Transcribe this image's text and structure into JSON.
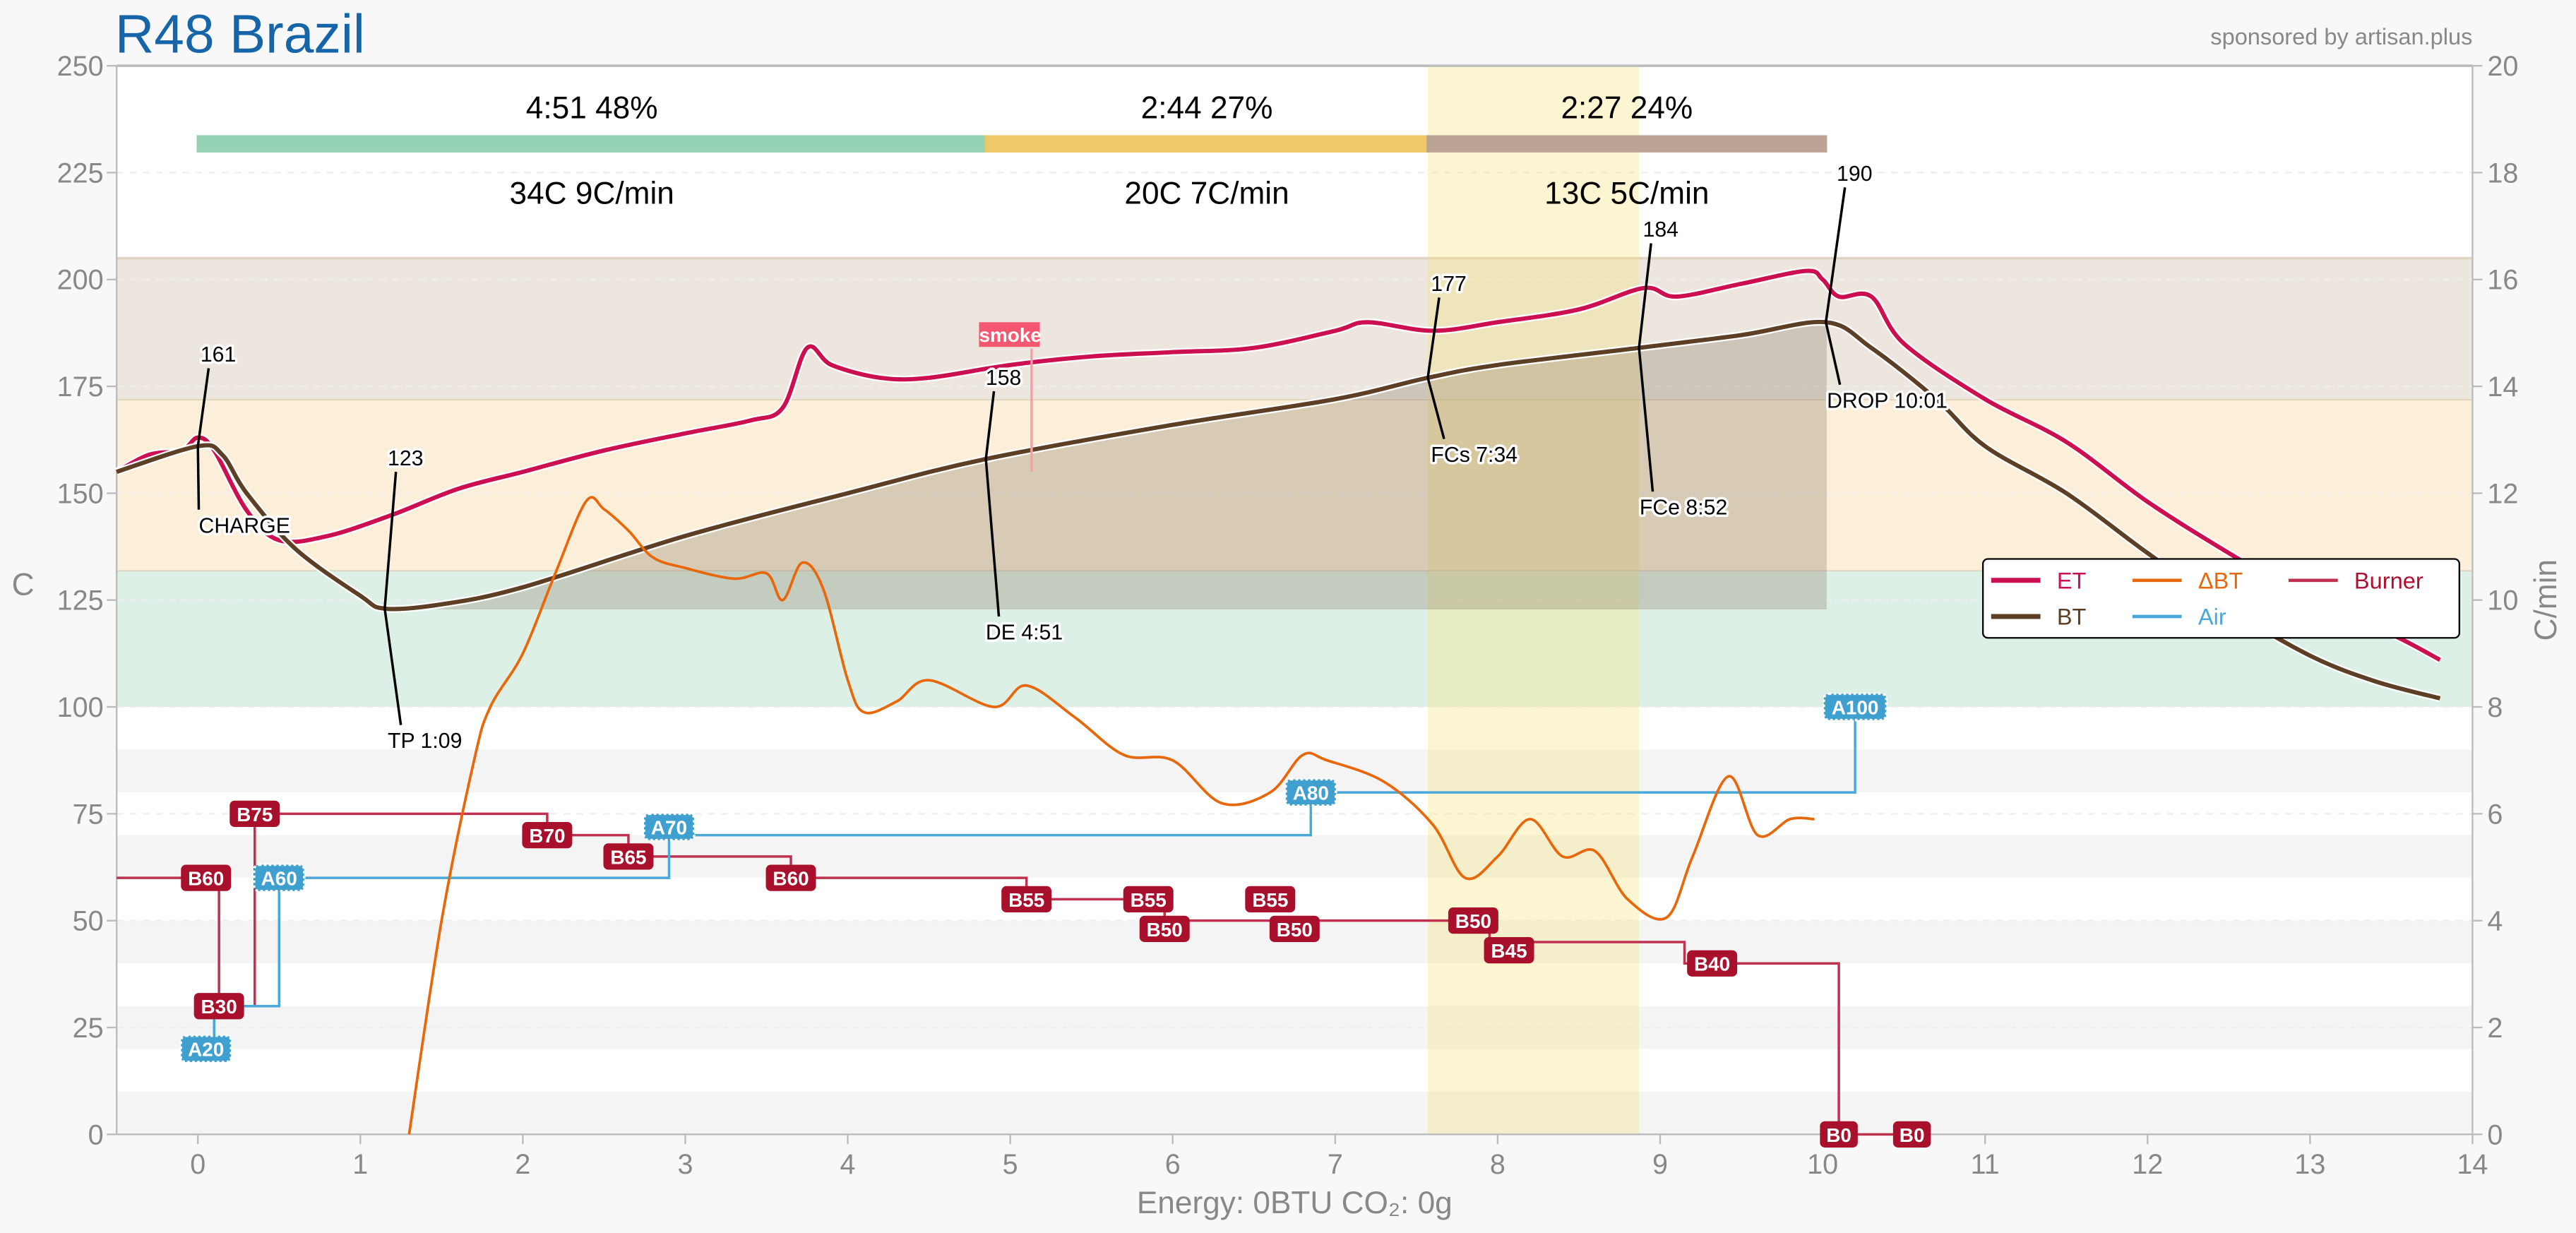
{
  "title": "R48 Brazil",
  "sponsor": "sponsored by artisan.plus",
  "footer": "Energy: 0BTU   CO₂: 0g",
  "colors": {
    "title": "#1565a8",
    "et": "#cc0f50",
    "bt": "#5d3f26",
    "dbt": "#e8670a",
    "burner": "#b01030",
    "air": "#4aa8d8",
    "phase1": "#8fd0b0",
    "phase2": "#f0c860",
    "phase3": "#b8a090"
  },
  "chart_data": {
    "type": "line",
    "xlim": [
      -0.5,
      14
    ],
    "ylim": [
      0,
      250
    ],
    "y2lim": [
      0,
      20
    ],
    "xticks": [
      "0",
      "1",
      "2",
      "3",
      "4",
      "5",
      "6",
      "7",
      "8",
      "9",
      "10",
      "11",
      "12",
      "13",
      "14"
    ],
    "yticks": [
      "0",
      "25",
      "50",
      "75",
      "100",
      "125",
      "150",
      "175",
      "200",
      "225",
      "250"
    ],
    "y2ticks": [
      "0",
      "2",
      "4",
      "6",
      "8",
      "10",
      "12",
      "14",
      "16",
      "18",
      "20"
    ],
    "ylabel": "C",
    "y2label": "C/min",
    "legend": {
      "placement": "right",
      "entries": [
        "ET",
        "BT",
        "ΔBT",
        "Air",
        "Burner"
      ]
    },
    "bands": [
      {
        "from": 100,
        "to": 132,
        "color": "#ddf0e6"
      },
      {
        "from": 132,
        "to": 172,
        "color": "#fbefd9"
      },
      {
        "from": 172,
        "to": 205,
        "color": "#ece6df"
      }
    ],
    "highlight": {
      "from": 7.57,
      "to": 8.87
    },
    "phases": [
      {
        "from": 0,
        "to": 4.85,
        "top": "4:51  48%",
        "bottom": "34C  9C/min",
        "color": "#8fd0b0"
      },
      {
        "from": 4.85,
        "to": 7.57,
        "top": "2:44  27%",
        "bottom": "20C  7C/min",
        "color": "#f0c860"
      },
      {
        "from": 7.57,
        "to": 10.02,
        "top": "2:27  24%",
        "bottom": "13C  5C/min",
        "color": "#b8a090"
      }
    ],
    "series": [
      {
        "name": "ET",
        "axis": "left",
        "points": [
          [
            -0.5,
            155
          ],
          [
            -0.3,
            159
          ],
          [
            -0.1,
            160
          ],
          [
            0,
            163
          ],
          [
            0.1,
            160
          ],
          [
            0.3,
            146
          ],
          [
            0.5,
            139
          ],
          [
            0.8,
            140
          ],
          [
            1.2,
            145
          ],
          [
            1.6,
            151
          ],
          [
            2,
            155
          ],
          [
            2.5,
            160
          ],
          [
            3,
            164
          ],
          [
            3.4,
            167
          ],
          [
            3.6,
            170
          ],
          [
            3.75,
            184
          ],
          [
            3.9,
            180
          ],
          [
            4.2,
            177
          ],
          [
            4.5,
            177
          ],
          [
            5,
            180
          ],
          [
            5.5,
            182
          ],
          [
            6,
            183
          ],
          [
            6.5,
            184
          ],
          [
            7,
            188
          ],
          [
            7.2,
            190
          ],
          [
            7.6,
            188
          ],
          [
            8,
            190
          ],
          [
            8.5,
            193
          ],
          [
            8.9,
            198
          ],
          [
            9.1,
            196
          ],
          [
            9.5,
            199
          ],
          [
            9.9,
            202
          ],
          [
            10,
            200
          ],
          [
            10.1,
            196
          ],
          [
            10.3,
            196
          ],
          [
            10.5,
            185
          ],
          [
            11,
            172
          ],
          [
            11.5,
            162
          ],
          [
            12,
            148
          ],
          [
            12.5,
            136
          ],
          [
            13,
            125
          ],
          [
            13.5,
            117
          ],
          [
            13.8,
            111
          ]
        ]
      },
      {
        "name": "BT",
        "axis": "left",
        "points": [
          [
            -0.5,
            155
          ],
          [
            0,
            161
          ],
          [
            0.15,
            159
          ],
          [
            0.3,
            150
          ],
          [
            0.6,
            137
          ],
          [
            1,
            126
          ],
          [
            1.15,
            123
          ],
          [
            1.5,
            124
          ],
          [
            2,
            128
          ],
          [
            3,
            140
          ],
          [
            4,
            150
          ],
          [
            4.85,
            158
          ],
          [
            6,
            166
          ],
          [
            7,
            172
          ],
          [
            7.57,
            177
          ],
          [
            8,
            180
          ],
          [
            8.87,
            184
          ],
          [
            9.5,
            187
          ],
          [
            10.02,
            190
          ],
          [
            10.3,
            184
          ],
          [
            10.7,
            172
          ],
          [
            11,
            161
          ],
          [
            11.5,
            150
          ],
          [
            12,
            136
          ],
          [
            12.5,
            123
          ],
          [
            13,
            112
          ],
          [
            13.4,
            106
          ],
          [
            13.8,
            102
          ]
        ]
      },
      {
        "name": "ΔBT",
        "axis": "right",
        "points": [
          [
            1.3,
            0
          ],
          [
            1.5,
            4
          ],
          [
            1.7,
            7
          ],
          [
            1.8,
            8
          ],
          [
            2,
            9
          ],
          [
            2.2,
            10.5
          ],
          [
            2.39,
            11.85
          ],
          [
            2.5,
            11.7
          ],
          [
            2.65,
            11.3
          ],
          [
            2.8,
            10.8
          ],
          [
            3,
            10.6
          ],
          [
            3.3,
            10.4
          ],
          [
            3.5,
            10.5
          ],
          [
            3.6,
            10.0
          ],
          [
            3.72,
            10.7
          ],
          [
            3.85,
            10.2
          ],
          [
            4,
            8.5
          ],
          [
            4.1,
            7.9
          ],
          [
            4.3,
            8.1
          ],
          [
            4.5,
            8.5
          ],
          [
            4.9,
            8.0
          ],
          [
            5.1,
            8.4
          ],
          [
            5.4,
            7.8
          ],
          [
            5.7,
            7.1
          ],
          [
            6,
            7.0
          ],
          [
            6.3,
            6.2
          ],
          [
            6.6,
            6.4
          ],
          [
            6.8,
            7.1
          ],
          [
            6.95,
            7.0
          ],
          [
            7.3,
            6.6
          ],
          [
            7.6,
            5.8
          ],
          [
            7.8,
            4.8
          ],
          [
            8.0,
            5.2
          ],
          [
            8.2,
            5.9
          ],
          [
            8.4,
            5.2
          ],
          [
            8.6,
            5.3
          ],
          [
            8.8,
            4.4
          ],
          [
            9.04,
            4.06
          ],
          [
            9.2,
            5.2
          ],
          [
            9.42,
            6.7
          ],
          [
            9.6,
            5.6
          ],
          [
            9.8,
            5.9
          ],
          [
            9.95,
            5.9
          ]
        ]
      }
    ],
    "burner_steps": [
      [
        -0.5,
        60
      ],
      [
        0.13,
        30
      ],
      [
        0.35,
        75
      ],
      [
        2.15,
        70
      ],
      [
        2.65,
        65
      ],
      [
        3.65,
        60
      ],
      [
        5.1,
        55
      ],
      [
        5.95,
        50
      ],
      [
        7.95,
        45
      ],
      [
        9.15,
        40
      ],
      [
        10.1,
        0
      ],
      [
        10.6,
        0
      ]
    ],
    "air_steps": [
      [
        0.05,
        20
      ],
      [
        0.1,
        30
      ],
      [
        0.5,
        60
      ],
      [
        2.9,
        70
      ],
      [
        6.85,
        80
      ],
      [
        10.2,
        100
      ]
    ],
    "burner_events": [
      [
        "B60",
        0.05,
        60
      ],
      [
        "B30",
        0.13,
        30
      ],
      [
        "B75",
        0.35,
        75
      ],
      [
        "B70",
        2.15,
        70
      ],
      [
        "B65",
        2.65,
        65
      ],
      [
        "B60",
        3.65,
        60
      ],
      [
        "B55",
        5.1,
        55
      ],
      [
        "B55",
        5.85,
        55
      ],
      [
        "B50",
        5.95,
        50
      ],
      [
        "B55",
        6.6,
        55
      ],
      [
        "B50",
        6.75,
        50
      ],
      [
        "B50",
        7.85,
        50
      ],
      [
        "B45",
        8.07,
        45
      ],
      [
        "B40",
        9.32,
        40
      ],
      [
        "B0",
        10.1,
        0
      ],
      [
        "B0",
        10.55,
        0
      ]
    ],
    "air_events": [
      [
        "A20",
        0.05,
        20
      ],
      [
        "A60",
        0.5,
        60
      ],
      [
        "A70",
        2.9,
        70
      ],
      [
        "A80",
        6.85,
        80
      ],
      [
        "A100",
        10.2,
        100
      ]
    ],
    "annotations": [
      {
        "value": "161",
        "label": "CHARGE",
        "t": 0,
        "c": 161
      },
      {
        "value": "123",
        "label": "TP 1:09",
        "t": 1.15,
        "c": 123
      },
      {
        "value": "158",
        "label": "DE 4:51",
        "t": 4.85,
        "c": 158
      },
      {
        "value": "177",
        "label": "FCs 7:34",
        "t": 7.57,
        "c": 177
      },
      {
        "value": "184",
        "label": "FCe 8:52",
        "t": 8.87,
        "c": 184
      },
      {
        "value": "190",
        "label": "DROP 10:01",
        "t": 10.02,
        "c": 190
      }
    ],
    "special_event": {
      "label": "smoke",
      "t": 5.0,
      "c": 180
    }
  }
}
